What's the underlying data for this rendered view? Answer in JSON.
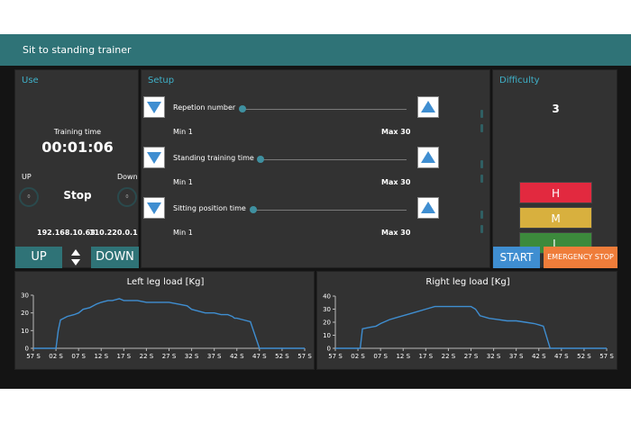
{
  "window": {
    "title": "Sit to standing trainer"
  },
  "use": {
    "title": "Use",
    "training_time_label": "Training time",
    "training_time": "00:01:06",
    "up_label": "UP",
    "down_label": "Down",
    "up_value": "0",
    "down_value": "0",
    "status": "Stop",
    "ip_address": "192.168.10.63",
    "ip_address_2": "110.220.0.1",
    "up_button": "UP",
    "down_button": "DOWN"
  },
  "setup": {
    "title": "Setup",
    "rows": [
      {
        "label": "Repetion number",
        "min": "Min 1",
        "max": "Max 30",
        "value": 1
      },
      {
        "label": "Standing training time",
        "min": "Min 1",
        "max": "Max 30",
        "value": 1
      },
      {
        "label": "Sitting position time",
        "min": "Min 1",
        "max": "Max 30",
        "value": 1
      }
    ]
  },
  "difficulty": {
    "title": "Difficulty",
    "value": "3",
    "levels": [
      {
        "label": "H",
        "color": "#e2293f"
      },
      {
        "label": "M",
        "color": "#d8b03e"
      },
      {
        "label": "L",
        "color": "#3c8a3c"
      }
    ],
    "start_button": "START",
    "emergency_button": "EMERGENCY STOP",
    "emergency_color": "#ef7d3a"
  },
  "colors": {
    "accent": "#2f7377",
    "line": "#3f8ed1"
  },
  "chart_data": [
    {
      "type": "line",
      "title": "Left leg load [Kg]",
      "x_ticks": [
        "57 S",
        "02 S",
        "07 S",
        "12 S",
        "17 S",
        "22 S",
        "27 S",
        "32 S",
        "37 S",
        "42 S",
        "47 S",
        "52 S",
        "57 S"
      ],
      "ylim": [
        0,
        30
      ],
      "y_ticks": [
        0,
        10,
        20,
        30
      ],
      "x": [
        0,
        0.8,
        1,
        1.1,
        1.2,
        1.5,
        1.8,
        2,
        2.2,
        2.5,
        2.8,
        3,
        3.3,
        3.5,
        3.8,
        4,
        4.3,
        4.6,
        5,
        5.3,
        5.6,
        6,
        6.4,
        6.8,
        7,
        7.3,
        7.6,
        8,
        8.3,
        8.6,
        8.8,
        8.9,
        9,
        9.3,
        9.6,
        10,
        10.5,
        11,
        11.5,
        12
      ],
      "values": [
        0,
        0,
        0,
        10,
        16,
        18,
        19,
        20,
        22,
        23,
        25,
        26,
        27,
        27,
        28,
        27,
        27,
        27,
        26,
        26,
        26,
        26,
        25,
        24,
        22,
        21,
        20,
        20,
        19,
        19,
        18,
        17,
        17,
        16,
        15,
        0,
        0,
        0,
        0,
        0
      ],
      "color": "#3f8ed1"
    },
    {
      "type": "line",
      "title": "Right leg load [Kg]",
      "x_ticks": [
        "57 S",
        "02 S",
        "07 S",
        "12 S",
        "17 S",
        "22 S",
        "27 S",
        "32 S",
        "37 S",
        "42 S",
        "47 S",
        "52 S",
        "57 S"
      ],
      "ylim": [
        0,
        40
      ],
      "y_ticks": [
        0,
        10,
        20,
        30,
        40
      ],
      "x": [
        0,
        1,
        1.1,
        1.2,
        1.5,
        1.8,
        2,
        2.4,
        2.8,
        3.2,
        3.6,
        4,
        4.4,
        4.8,
        5.2,
        5.6,
        6,
        6.2,
        6.4,
        6.8,
        7.2,
        7.6,
        8,
        8.4,
        8.8,
        9,
        9.2,
        9.5,
        10,
        10.5,
        11,
        11.5,
        12
      ],
      "values": [
        0,
        0,
        0,
        15,
        16,
        17,
        19,
        22,
        24,
        26,
        28,
        30,
        32,
        32,
        32,
        32,
        32,
        30,
        25,
        23,
        22,
        21,
        21,
        20,
        19,
        18,
        17,
        0,
        0,
        0,
        0,
        0,
        0
      ],
      "color": "#3f8ed1"
    }
  ]
}
